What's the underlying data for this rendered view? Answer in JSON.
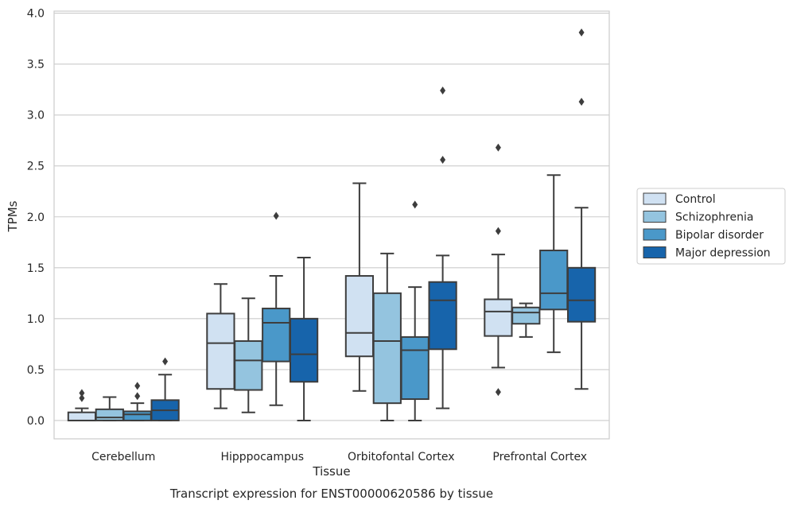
{
  "chart_data": {
    "type": "box",
    "caption": "Transcript expression for ENST00000620586 by tissue",
    "xlabel": "Tissue",
    "ylabel": "TPMs",
    "ylim": [
      -0.18,
      4.02
    ],
    "yticks": [
      "0.0",
      "0.5",
      "1.0",
      "1.5",
      "2.0",
      "2.5",
      "3.0",
      "3.5",
      "4.0"
    ],
    "grid": true,
    "legend_position": "right",
    "categories": [
      "Cerebellum",
      "Hipppocampus",
      "Orbitofontal Cortex",
      "Prefrontal Cortex"
    ],
    "series": [
      {
        "name": "Control",
        "color": "#d0e1f2",
        "boxes": [
          {
            "whislo": 0.0,
            "q1": 0.0,
            "med": 0.0,
            "q3": 0.08,
            "whishi": 0.12,
            "fliers": [
              0.22,
              0.27
            ]
          },
          {
            "whislo": 0.12,
            "q1": 0.31,
            "med": 0.76,
            "q3": 1.05,
            "whishi": 1.34,
            "fliers": []
          },
          {
            "whislo": 0.29,
            "q1": 0.63,
            "med": 0.86,
            "q3": 1.42,
            "whishi": 2.33,
            "fliers": []
          },
          {
            "whislo": 0.52,
            "q1": 0.83,
            "med": 1.07,
            "q3": 1.19,
            "whishi": 1.63,
            "fliers": [
              0.28,
              1.86,
              2.68
            ]
          }
        ]
      },
      {
        "name": "Schizophrenia",
        "color": "#94c4df",
        "boxes": [
          {
            "whislo": 0.0,
            "q1": 0.0,
            "med": 0.03,
            "q3": 0.11,
            "whishi": 0.23,
            "fliers": []
          },
          {
            "whislo": 0.08,
            "q1": 0.3,
            "med": 0.59,
            "q3": 0.78,
            "whishi": 1.2,
            "fliers": []
          },
          {
            "whislo": 0.0,
            "q1": 0.17,
            "med": 0.78,
            "q3": 1.25,
            "whishi": 1.64,
            "fliers": []
          },
          {
            "whislo": 0.82,
            "q1": 0.95,
            "med": 1.06,
            "q3": 1.11,
            "whishi": 1.15,
            "fliers": []
          }
        ]
      },
      {
        "name": "Bipolar disorder",
        "color": "#4a98c9",
        "boxes": [
          {
            "whislo": 0.0,
            "q1": 0.0,
            "med": 0.06,
            "q3": 0.09,
            "whishi": 0.17,
            "fliers": [
              0.24,
              0.34
            ]
          },
          {
            "whislo": 0.15,
            "q1": 0.58,
            "med": 0.96,
            "q3": 1.1,
            "whishi": 1.42,
            "fliers": [
              2.01
            ]
          },
          {
            "whislo": 0.0,
            "q1": 0.21,
            "med": 0.69,
            "q3": 0.82,
            "whishi": 1.31,
            "fliers": [
              2.12
            ]
          },
          {
            "whislo": 0.67,
            "q1": 1.09,
            "med": 1.25,
            "q3": 1.67,
            "whishi": 2.41,
            "fliers": []
          }
        ]
      },
      {
        "name": "Major depression",
        "color": "#1764ab",
        "boxes": [
          {
            "whislo": 0.0,
            "q1": 0.0,
            "med": 0.1,
            "q3": 0.2,
            "whishi": 0.45,
            "fliers": [
              0.58
            ]
          },
          {
            "whislo": 0.0,
            "q1": 0.38,
            "med": 0.65,
            "q3": 1.0,
            "whishi": 1.6,
            "fliers": []
          },
          {
            "whislo": 0.12,
            "q1": 0.7,
            "med": 1.18,
            "q3": 1.36,
            "whishi": 1.62,
            "fliers": [
              2.56,
              3.24
            ]
          },
          {
            "whislo": 0.31,
            "q1": 0.97,
            "med": 1.18,
            "q3": 1.5,
            "whishi": 2.09,
            "fliers": [
              3.13,
              3.81
            ]
          }
        ]
      }
    ]
  }
}
